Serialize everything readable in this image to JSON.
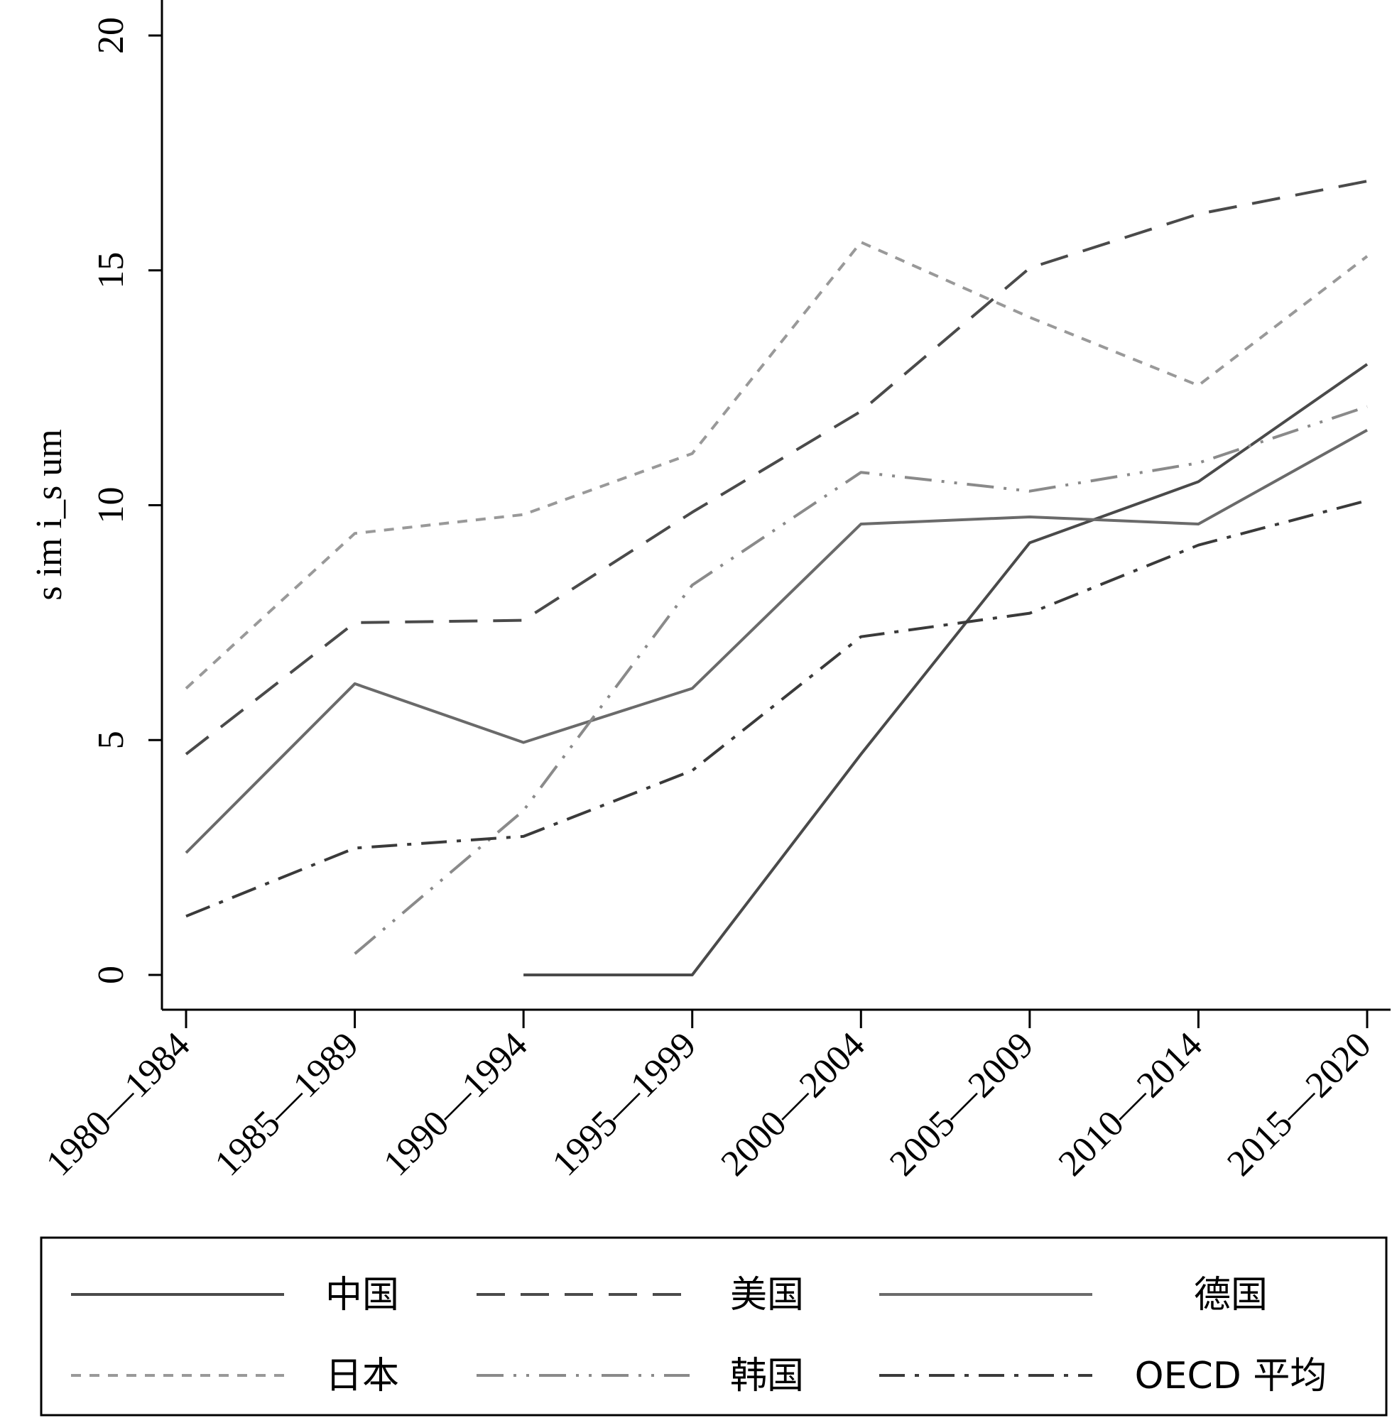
{
  "chart_data": {
    "type": "line",
    "ylabel": "s im i_s um",
    "xlabel": "",
    "ylim": [
      0,
      20
    ],
    "yticks": [
      "0",
      "5",
      "10",
      "15",
      "20"
    ],
    "categories": [
      "1980—1984",
      "1985—1989",
      "1990—1994",
      "1995—1999",
      "2000—2004",
      "2005—2009",
      "2010—2014",
      "2015—2020"
    ],
    "legend_position": "bottom",
    "series": [
      {
        "name": "中国",
        "style": "solid",
        "color": "#4a4a4a",
        "values": [
          null,
          null,
          0,
          0,
          4.7,
          9.2,
          10.5,
          13.0
        ]
      },
      {
        "name": "美国",
        "style": "longdash",
        "color": "#4a4a4a",
        "values": [
          4.7,
          7.5,
          7.55,
          9.85,
          12.0,
          15.05,
          16.2,
          16.9
        ]
      },
      {
        "name": "德国",
        "style": "solid",
        "color": "#6a6a6a",
        "values": [
          2.6,
          6.2,
          4.95,
          6.1,
          9.6,
          9.75,
          9.6,
          11.6
        ]
      },
      {
        "name": "日本",
        "style": "shortdash",
        "color": "#999999",
        "values": [
          6.1,
          9.4,
          9.8,
          11.1,
          15.6,
          14.0,
          12.55,
          15.3
        ]
      },
      {
        "name": "韩国",
        "style": "dashdotdot",
        "color": "#8a8a8a",
        "values": [
          null,
          0.45,
          3.5,
          8.3,
          10.7,
          10.3,
          10.9,
          12.1
        ]
      },
      {
        "name": "OECD 平均",
        "style": "dashdot",
        "color": "#3a3a3a",
        "values": [
          1.25,
          2.7,
          2.95,
          4.35,
          7.2,
          7.7,
          9.15,
          10.1
        ]
      }
    ]
  }
}
